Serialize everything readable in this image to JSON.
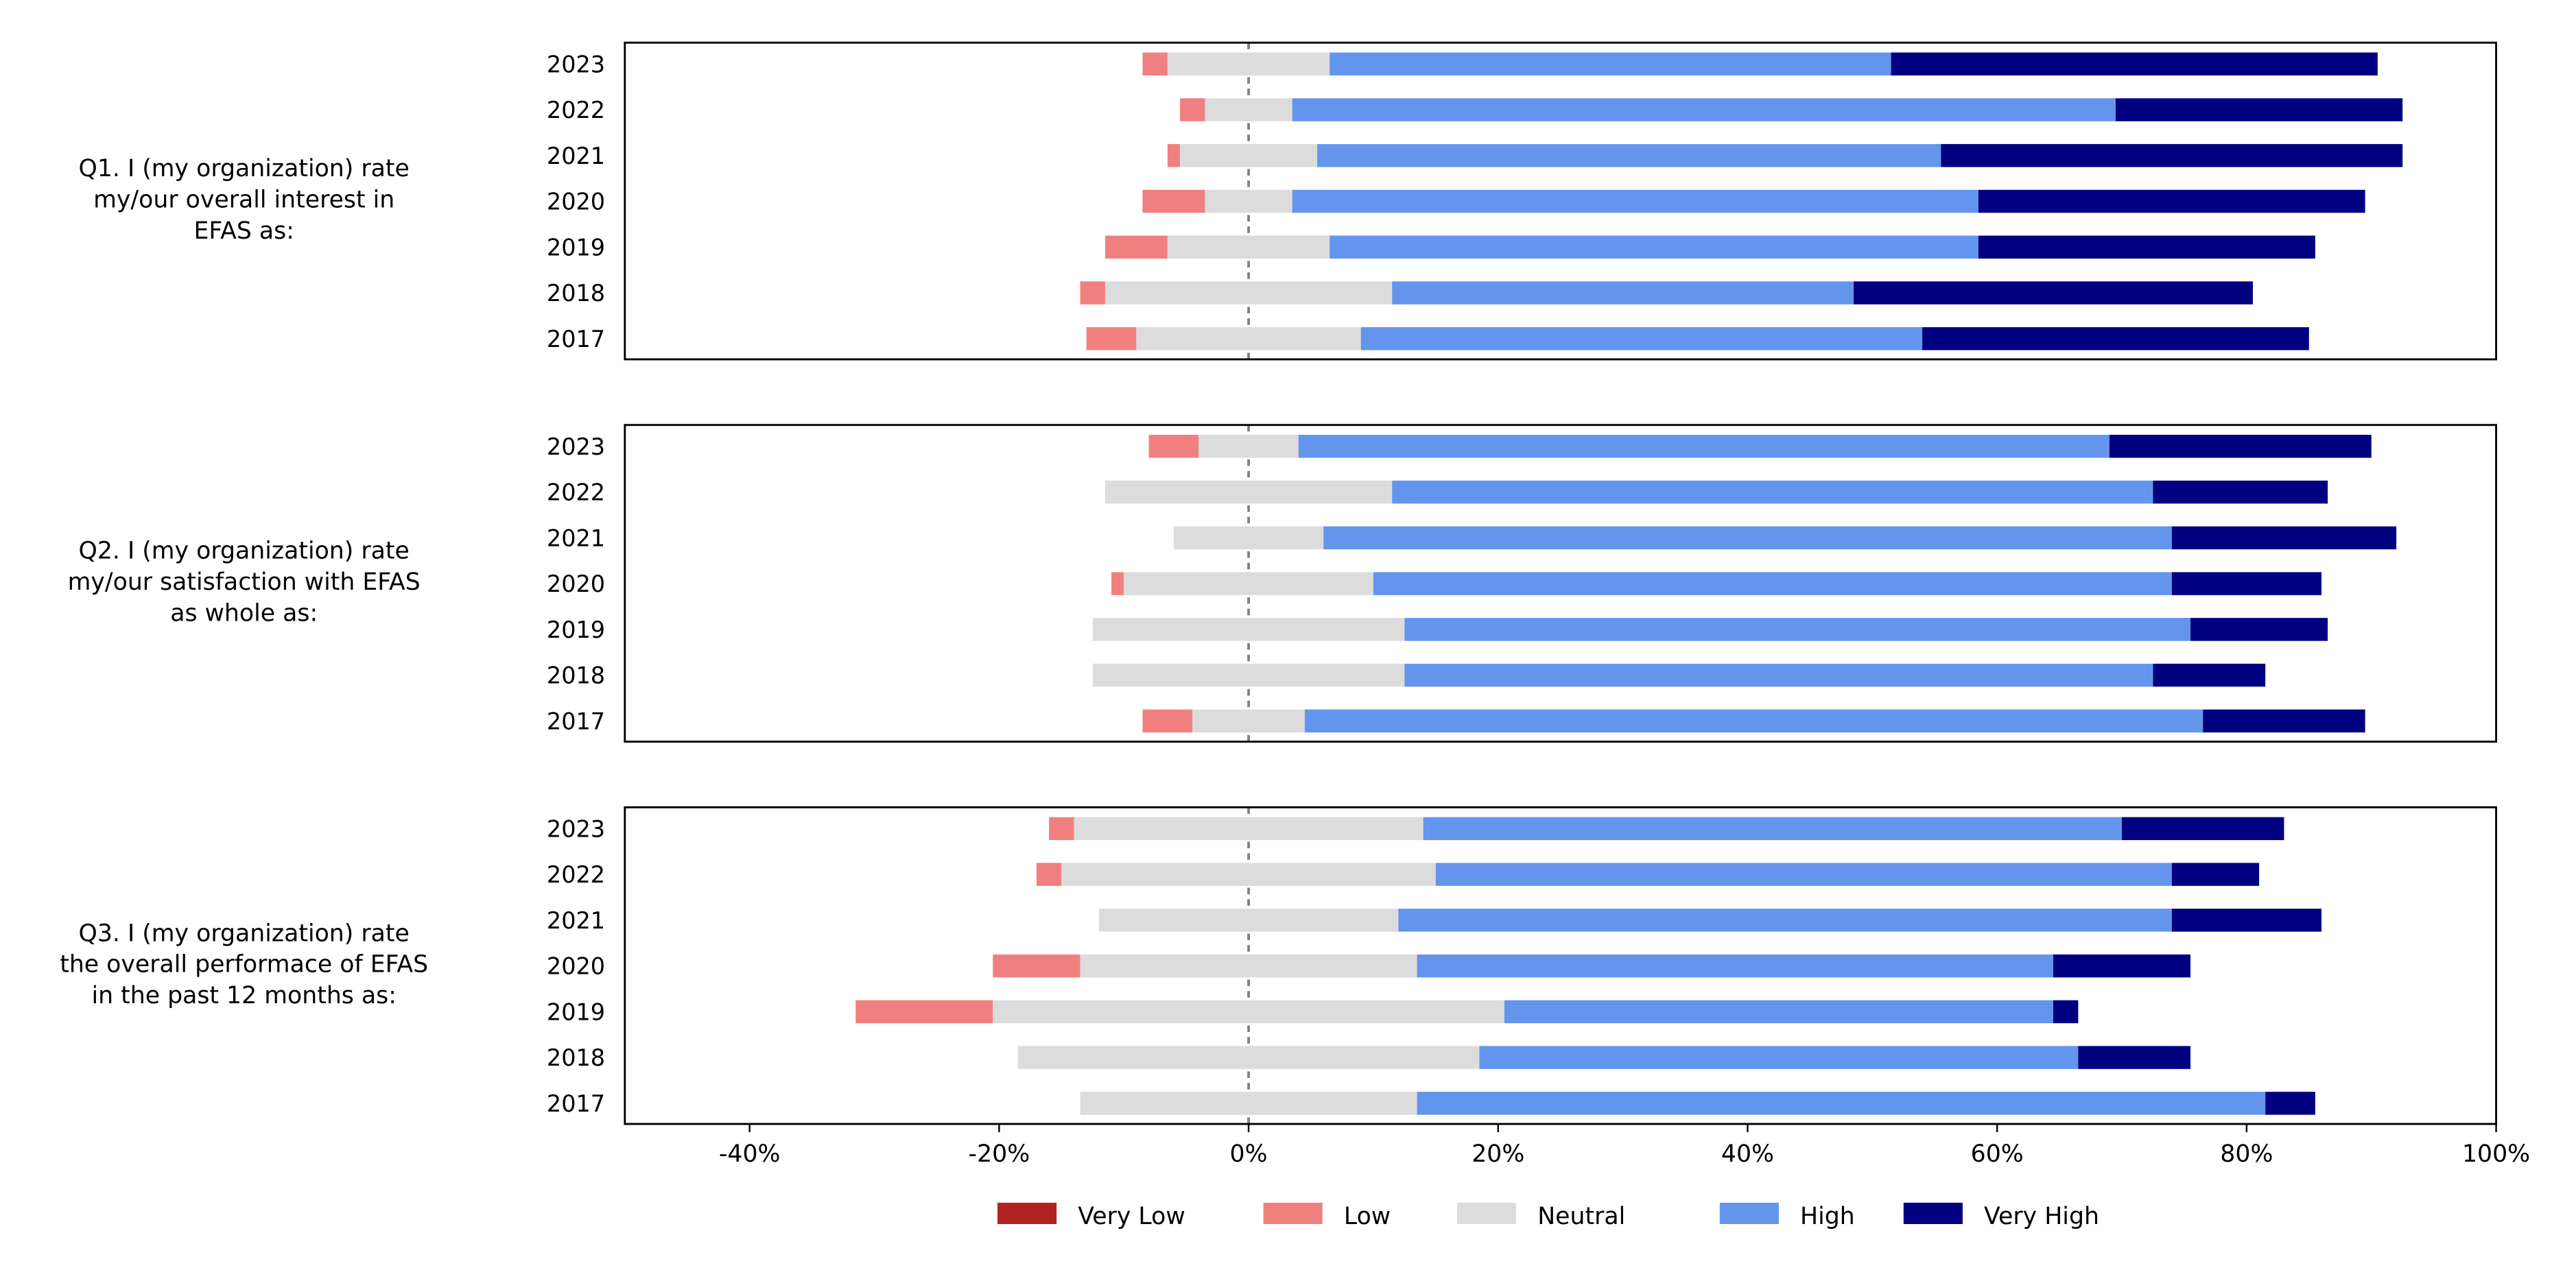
{
  "chart_data": {
    "type": "bar",
    "orientation": "horizontal-diverging-stacked",
    "xlim": [
      -50,
      100
    ],
    "x_ticks": [
      "-40%",
      "-20%",
      "0%",
      "20%",
      "40%",
      "60%",
      "80%",
      "100%"
    ],
    "x_tick_values": [
      -40,
      -20,
      0,
      20,
      40,
      60,
      80,
      100
    ],
    "legend": {
      "placement": "bottom-center",
      "entries": [
        "Very Low",
        "Low",
        "Neutral",
        "High",
        "Very High"
      ]
    },
    "colors": {
      "Very Low": "#b22222",
      "Low": "#f08080",
      "Neutral": "#dcdcdc",
      "High": "#6495ed",
      "Very High": "#000080"
    },
    "categories": [
      "2023",
      "2022",
      "2021",
      "2020",
      "2019",
      "2018",
      "2017"
    ],
    "panels": [
      {
        "question_lines": [
          "Q1. I (my organization) rate",
          "my/our overall interest in",
          "EFAS as:"
        ],
        "series": [
          {
            "name": "Very Low",
            "values": [
              0,
              0,
              0,
              0,
              0,
              0,
              0
            ]
          },
          {
            "name": "Low",
            "values": [
              2,
              2,
              1,
              5,
              5,
              2,
              4
            ]
          },
          {
            "name": "Neutral",
            "values": [
              13,
              7,
              11,
              7,
              13,
              23,
              18
            ]
          },
          {
            "name": "High",
            "values": [
              45,
              66,
              50,
              55,
              52,
              37,
              45
            ]
          },
          {
            "name": "Very High",
            "values": [
              39,
              23,
              37,
              31,
              27,
              32,
              31
            ]
          }
        ]
      },
      {
        "question_lines": [
          "Q2. I (my organization) rate",
          "my/our satisfaction with EFAS",
          "as whole as:"
        ],
        "series": [
          {
            "name": "Very Low",
            "values": [
              0,
              0,
              0,
              0,
              0,
              0,
              0
            ]
          },
          {
            "name": "Low",
            "values": [
              4,
              0,
              0,
              1,
              0,
              0,
              4
            ]
          },
          {
            "name": "Neutral",
            "values": [
              8,
              23,
              12,
              20,
              25,
              25,
              9
            ]
          },
          {
            "name": "High",
            "values": [
              65,
              61,
              68,
              64,
              63,
              60,
              72
            ]
          },
          {
            "name": "Very High",
            "values": [
              21,
              14,
              18,
              12,
              11,
              9,
              13
            ]
          }
        ]
      },
      {
        "question_lines": [
          "Q3. I (my organization) rate",
          "the overall performace of EFAS",
          "in the past 12 months as:"
        ],
        "series": [
          {
            "name": "Very Low",
            "values": [
              0,
              0,
              0,
              0,
              0,
              0,
              0
            ]
          },
          {
            "name": "Low",
            "values": [
              2,
              2,
              0,
              7,
              11,
              0,
              0
            ]
          },
          {
            "name": "Neutral",
            "values": [
              28,
              30,
              24,
              27,
              41,
              37,
              27
            ]
          },
          {
            "name": "High",
            "values": [
              56,
              59,
              62,
              51,
              44,
              48,
              68
            ]
          },
          {
            "name": "Very High",
            "values": [
              13,
              7,
              12,
              11,
              2,
              9,
              4
            ]
          }
        ]
      }
    ]
  }
}
